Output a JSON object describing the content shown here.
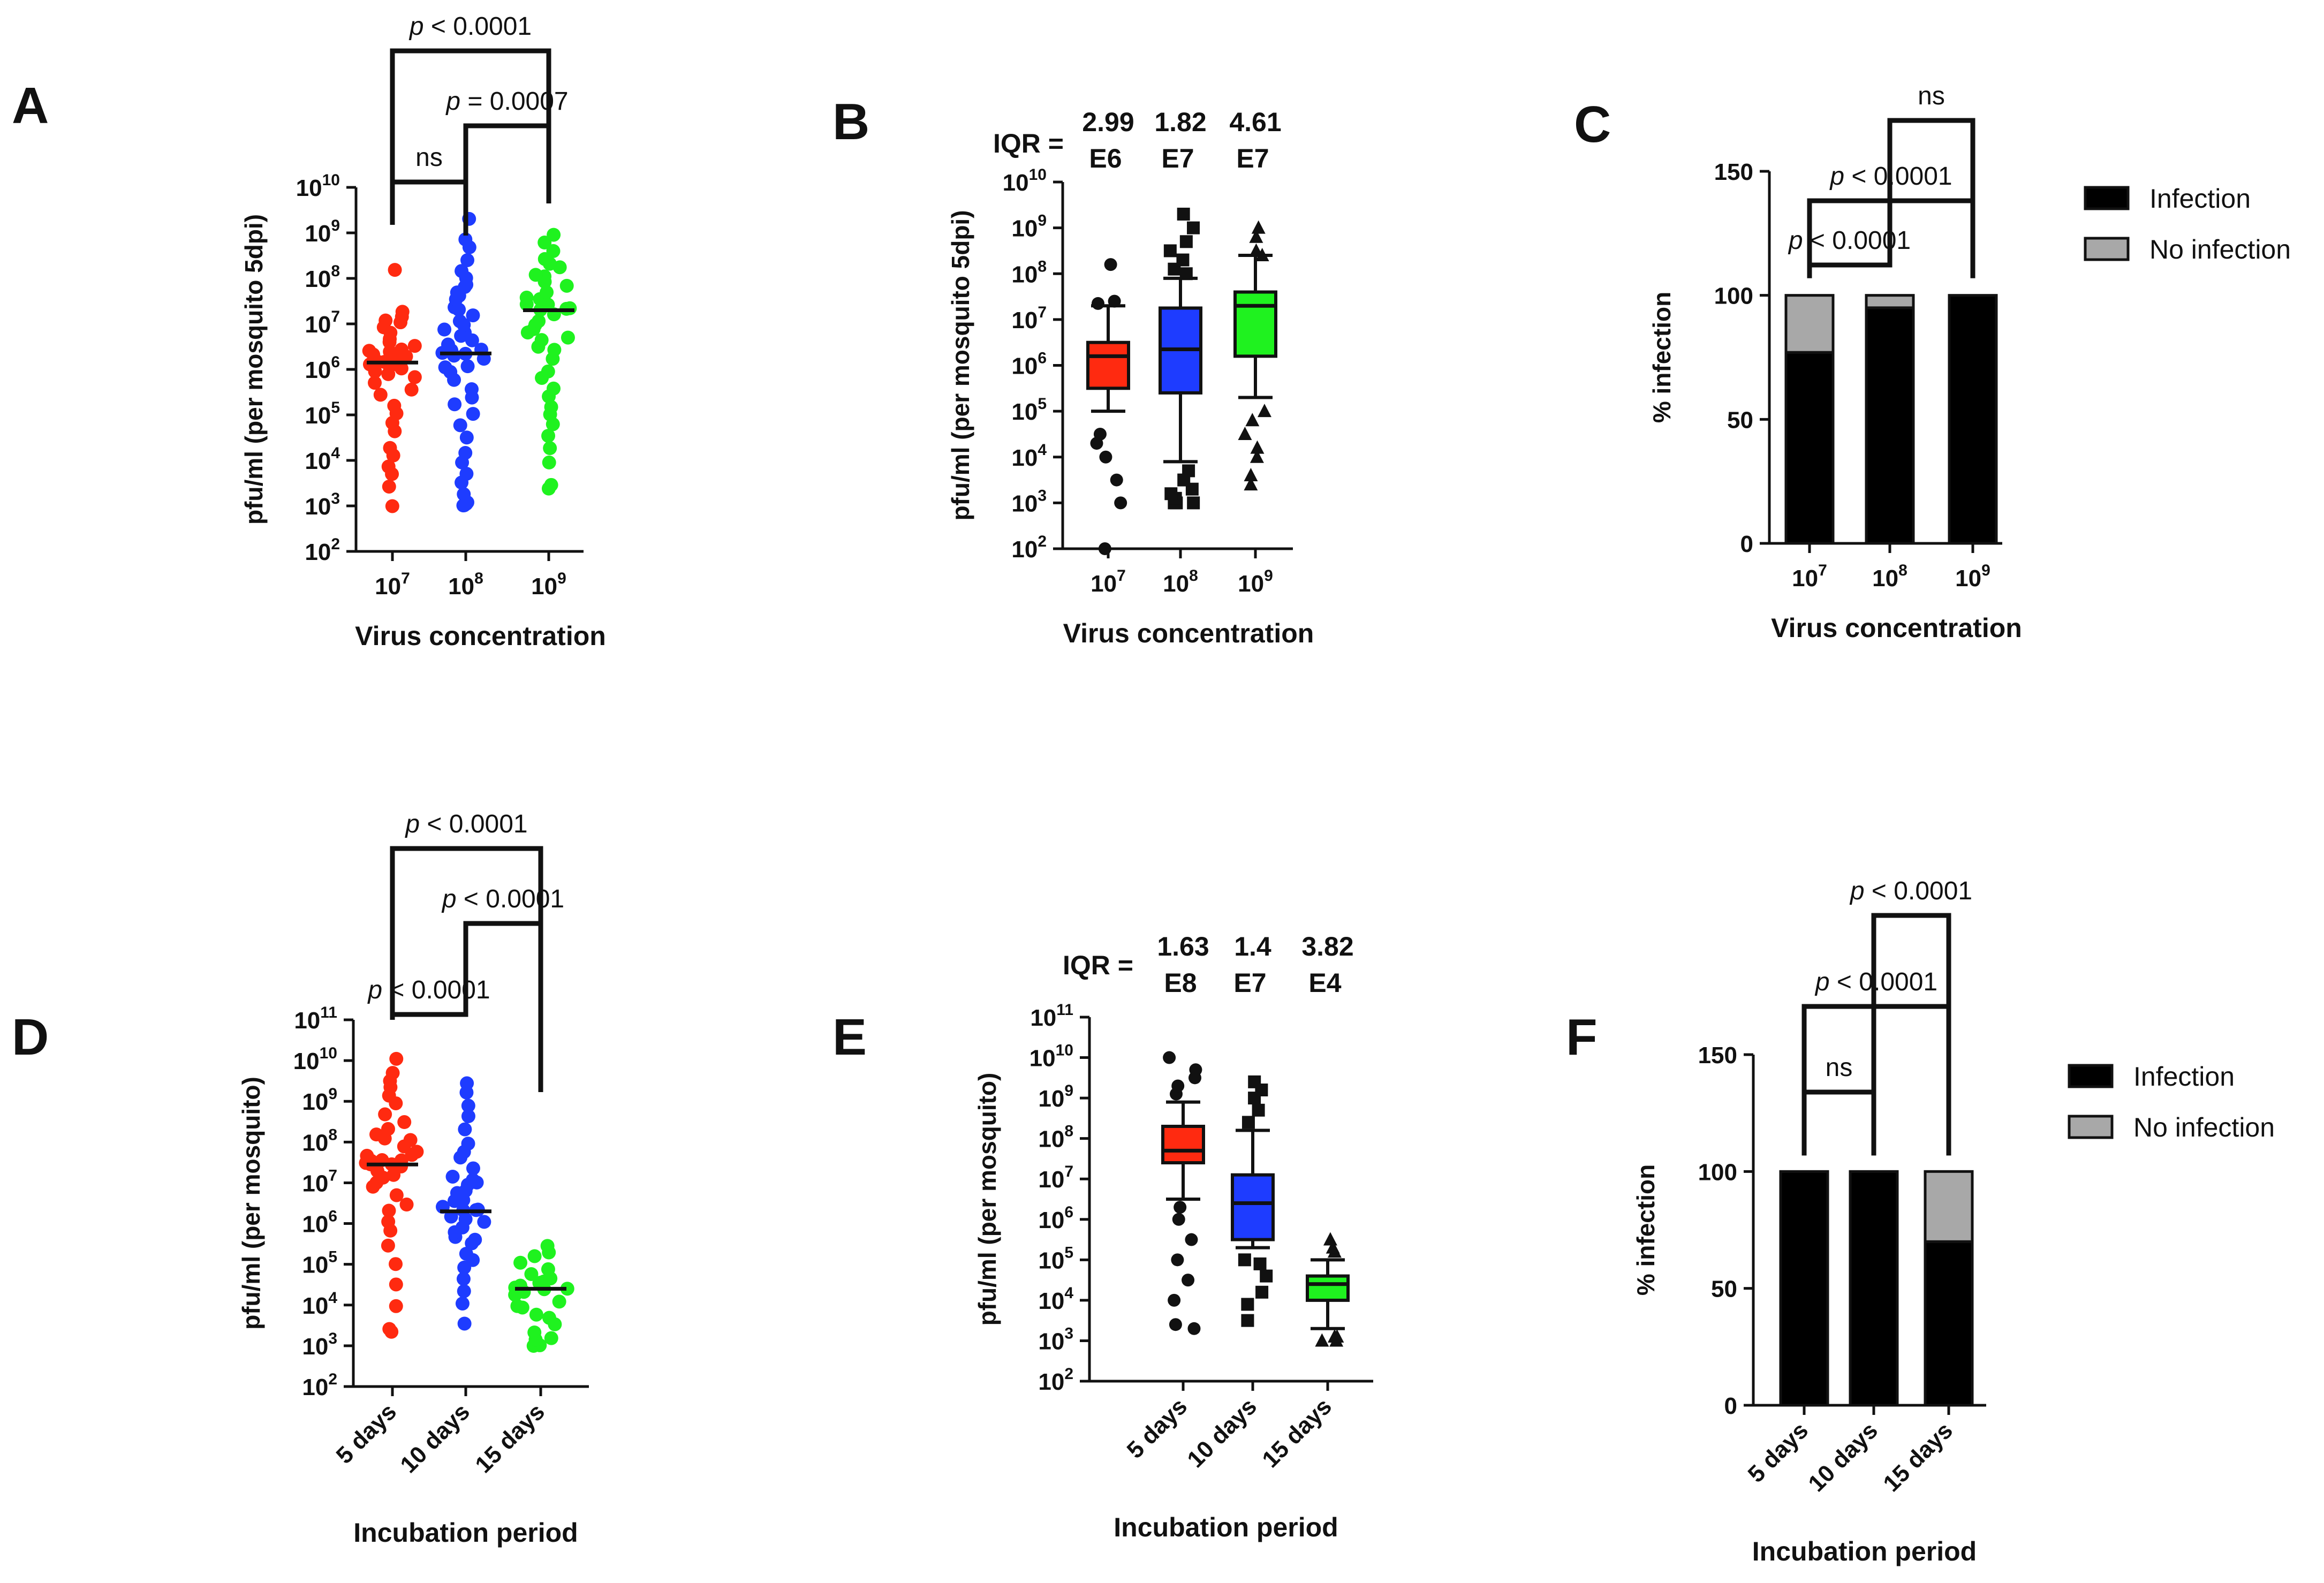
{
  "figure": {
    "panel_letters": [
      "A",
      "B",
      "C",
      "D",
      "E",
      "F"
    ]
  },
  "chart_data": [
    {
      "panel": "A",
      "type": "scatter",
      "xlabel": "Virus concentration",
      "ylabel": "pfu/ml (per mosquito 5dpi)",
      "yscale": "log10",
      "ylim_exp": [
        2,
        10
      ],
      "ytick_base": "10",
      "ytick_exponents": [
        "2",
        "3",
        "4",
        "5",
        "6",
        "7",
        "8",
        "9",
        "10"
      ],
      "categories": [
        {
          "label": "10",
          "sup": "7",
          "color": "#ff2a10",
          "median_exp": 6.15,
          "log_values": [
            3.0,
            3.4,
            3.7,
            3.9,
            4.1,
            4.3,
            4.6,
            4.8,
            5.0,
            5.2,
            5.4,
            5.6,
            5.7,
            5.8,
            5.9,
            6.0,
            6.0,
            6.05,
            6.1,
            6.1,
            6.15,
            6.15,
            6.2,
            6.2,
            6.25,
            6.3,
            6.3,
            6.35,
            6.4,
            6.45,
            6.5,
            6.6,
            6.7,
            6.8,
            6.9,
            7.0,
            7.1,
            7.2,
            7.3,
            8.2
          ]
        },
        {
          "label": "10",
          "sup": "8",
          "color": "#1e3cff",
          "median_exp": 6.35,
          "log_values": [
            3.0,
            3.0,
            3.0,
            3.1,
            3.3,
            3.5,
            3.7,
            4.0,
            4.2,
            4.5,
            4.8,
            5.0,
            5.2,
            5.4,
            5.6,
            5.8,
            5.9,
            6.0,
            6.1,
            6.2,
            6.3,
            6.3,
            6.35,
            6.4,
            6.4,
            6.5,
            6.6,
            6.7,
            6.8,
            6.9,
            7.0,
            7.1,
            7.2,
            7.3,
            7.4,
            7.5,
            7.6,
            7.7,
            7.8,
            7.9,
            8.0,
            8.2,
            8.4,
            8.7,
            8.9,
            9.3
          ]
        },
        {
          "label": "10",
          "sup": "9",
          "color": "#1ff21f",
          "median_exp": 7.3,
          "log_values": [
            3.4,
            3.5,
            4.0,
            4.3,
            4.5,
            4.8,
            5.0,
            5.2,
            5.4,
            5.6,
            5.8,
            6.0,
            6.2,
            6.4,
            6.5,
            6.6,
            6.7,
            6.8,
            6.9,
            7.0,
            7.1,
            7.2,
            7.3,
            7.3,
            7.35,
            7.4,
            7.4,
            7.5,
            7.5,
            7.6,
            7.7,
            7.8,
            7.9,
            8.0,
            8.1,
            8.2,
            8.3,
            8.4,
            8.6,
            8.8,
            9.0
          ]
        }
      ],
      "annotations": [
        {
          "pre": "",
          "it": "p",
          "post": " < 0.0001",
          "from": 0,
          "to": 2,
          "level": 3
        },
        {
          "pre": "",
          "it": "p",
          "post": " = 0.0007",
          "from": 1,
          "to": 2,
          "level": 2
        },
        {
          "pre": "ns",
          "it": "",
          "post": "",
          "from": 0,
          "to": 1,
          "level": 1
        }
      ]
    },
    {
      "panel": "B",
      "type": "box",
      "xlabel": "Virus concentration",
      "ylabel": "pfu/ml (per mosquito 5dpi)",
      "yscale": "log10",
      "ylim_exp": [
        2,
        10
      ],
      "ytick_base": "10",
      "ytick_exponents": [
        "2",
        "3",
        "4",
        "5",
        "6",
        "7",
        "8",
        "9",
        "10"
      ],
      "iqr_label": "IQR =",
      "categories": [
        {
          "label": "10",
          "sup": "7",
          "color": "#ff2a10",
          "marker": "circle",
          "q1": 5.5,
          "median": 6.2,
          "q3": 6.5,
          "whisker_low": 5.0,
          "whisker_high": 7.3,
          "iqr_value": "2.99",
          "iqr_unit": "E6",
          "outliers": [
            2.0,
            3.0,
            3.5,
            4.0,
            4.3,
            4.5,
            7.35,
            7.4,
            8.2
          ]
        },
        {
          "label": "10",
          "sup": "8",
          "color": "#1e3cff",
          "marker": "square",
          "q1": 5.4,
          "median": 6.35,
          "q3": 7.25,
          "whisker_low": 3.9,
          "whisker_high": 7.9,
          "iqr_value": "1.82",
          "iqr_unit": "E7",
          "outliers": [
            3.0,
            3.0,
            3.0,
            3.1,
            3.2,
            3.3,
            3.5,
            3.7,
            8.0,
            8.1,
            8.3,
            8.5,
            8.7,
            9.0,
            9.3
          ]
        },
        {
          "label": "10",
          "sup": "9",
          "color": "#1ff21f",
          "marker": "triangle",
          "q1": 6.2,
          "median": 7.3,
          "q3": 7.6,
          "whisker_low": 5.3,
          "whisker_high": 8.4,
          "iqr_value": "4.61",
          "iqr_unit": "E7",
          "outliers": [
            3.4,
            3.6,
            4.0,
            4.2,
            4.5,
            4.8,
            5.0,
            8.4,
            8.5,
            8.8,
            9.0
          ]
        }
      ]
    },
    {
      "panel": "C",
      "type": "bar",
      "stacked": true,
      "xlabel": "Virus concentration",
      "ylabel": "% infection",
      "ylim": [
        0,
        150
      ],
      "yticks": [
        "0",
        "50",
        "100",
        "150"
      ],
      "categories": [
        {
          "label": "10",
          "sup": "7"
        },
        {
          "label": "10",
          "sup": "8"
        },
        {
          "label": "10",
          "sup": "9"
        }
      ],
      "series": [
        {
          "name": "Infection",
          "color": "#000000",
          "values": [
            77,
            95,
            100
          ]
        },
        {
          "name": "No infection",
          "color": "#a8a8a8",
          "values": [
            23,
            5,
            0
          ]
        }
      ],
      "annotations": [
        {
          "pre": "ns",
          "it": "",
          "post": "",
          "from": 1,
          "to": 2,
          "level": 3
        },
        {
          "pre": "",
          "it": "p",
          "post": " < 0.0001",
          "from": 0,
          "to": 2,
          "level": 2
        },
        {
          "pre": "",
          "it": "p",
          "post": " < 0.0001",
          "from": 0,
          "to": 1,
          "level": 1
        }
      ]
    },
    {
      "panel": "D",
      "type": "scatter",
      "xlabel": "Incubation period",
      "ylabel": "pfu/ml (per mosquito)",
      "yscale": "log10",
      "ylim_exp": [
        2,
        11
      ],
      "ytick_base": "10",
      "ytick_exponents": [
        "2",
        "3",
        "4",
        "5",
        "6",
        "7",
        "8",
        "9",
        "10",
        "11"
      ],
      "categories": [
        {
          "label": "5 days",
          "color": "#ff2a10",
          "median_exp": 7.45,
          "log_values": [
            3.3,
            3.4,
            4.0,
            4.5,
            5.0,
            5.5,
            5.8,
            6.0,
            6.3,
            6.5,
            6.7,
            6.9,
            7.0,
            7.1,
            7.2,
            7.3,
            7.4,
            7.4,
            7.45,
            7.5,
            7.5,
            7.55,
            7.6,
            7.65,
            7.7,
            7.8,
            7.9,
            8.0,
            8.1,
            8.2,
            8.3,
            8.5,
            8.7,
            8.9,
            9.1,
            9.3,
            9.5,
            9.7,
            10.0
          ]
        },
        {
          "label": "10 days",
          "color": "#1e3cff",
          "median_exp": 6.3,
          "log_values": [
            3.5,
            4.0,
            4.3,
            4.6,
            4.9,
            5.1,
            5.3,
            5.5,
            5.6,
            5.7,
            5.8,
            5.9,
            6.0,
            6.1,
            6.2,
            6.3,
            6.3,
            6.35,
            6.4,
            6.5,
            6.6,
            6.7,
            6.8,
            6.9,
            7.0,
            7.1,
            7.2,
            7.4,
            7.6,
            7.8,
            8.0,
            8.3,
            8.6,
            8.9,
            9.2,
            9.4
          ]
        },
        {
          "label": "15 days",
          "color": "#1ff21f",
          "median_exp": 4.4,
          "log_values": [
            3.0,
            3.0,
            3.1,
            3.2,
            3.3,
            3.5,
            3.7,
            3.8,
            3.9,
            4.0,
            4.1,
            4.2,
            4.3,
            4.35,
            4.4,
            4.4,
            4.45,
            4.5,
            4.5,
            4.6,
            4.7,
            4.8,
            4.9,
            5.0,
            5.2,
            5.3,
            5.5
          ]
        }
      ],
      "annotations": [
        {
          "pre": "",
          "it": "p",
          "post": " < 0.0001",
          "from": 0,
          "to": 2,
          "level": 3
        },
        {
          "pre": "",
          "it": "p",
          "post": " < 0.0001",
          "from": 1,
          "to": 2,
          "level": 2
        },
        {
          "pre": "",
          "it": "p",
          "post": " < 0.0001",
          "from": 0,
          "to": 1,
          "level": 1
        }
      ]
    },
    {
      "panel": "E",
      "type": "box",
      "xlabel": "Incubation period",
      "ylabel": "pfu/ml (per mosquito)",
      "yscale": "log10",
      "ylim_exp": [
        2,
        11
      ],
      "ytick_base": "10",
      "ytick_exponents": [
        "2",
        "3",
        "4",
        "5",
        "6",
        "7",
        "8",
        "9",
        "10",
        "11"
      ],
      "iqr_label": "IQR =",
      "categories": [
        {
          "label": "5 days",
          "color": "#ff2a10",
          "marker": "circle",
          "q1": 7.4,
          "median": 7.7,
          "q3": 8.3,
          "whisker_low": 6.5,
          "whisker_high": 8.9,
          "iqr_value": "1.63",
          "iqr_unit": "E8",
          "outliers": [
            3.3,
            3.4,
            4.0,
            4.5,
            5.0,
            5.5,
            6.0,
            6.3,
            9.1,
            9.3,
            9.5,
            9.7,
            10.0
          ]
        },
        {
          "label": "10 days",
          "color": "#1e3cff",
          "marker": "square",
          "q1": 5.5,
          "median": 6.4,
          "q3": 7.1,
          "whisker_low": 5.3,
          "whisker_high": 8.2,
          "iqr_value": "1.4",
          "iqr_unit": "E7",
          "outliers": [
            3.5,
            3.9,
            4.2,
            4.6,
            4.9,
            5.0,
            8.4,
            8.7,
            9.0,
            9.2,
            9.4
          ]
        },
        {
          "label": "15 days",
          "color": "#1ff21f",
          "marker": "triangle",
          "q1": 4.0,
          "median": 4.4,
          "q3": 4.6,
          "whisker_low": 3.3,
          "whisker_high": 5.0,
          "iqr_value": "3.82",
          "iqr_unit": "E4",
          "outliers": [
            3.0,
            3.0,
            3.1,
            3.1,
            5.2,
            5.3,
            5.5
          ]
        }
      ]
    },
    {
      "panel": "F",
      "type": "bar",
      "stacked": true,
      "xlabel": "Incubation period",
      "ylabel": "% infection",
      "ylim": [
        0,
        150
      ],
      "yticks": [
        "0",
        "50",
        "100",
        "150"
      ],
      "categories": [
        {
          "label": "5 days"
        },
        {
          "label": "10 days"
        },
        {
          "label": "15 days"
        }
      ],
      "series": [
        {
          "name": "Infection",
          "color": "#000000",
          "values": [
            100,
            100,
            70
          ]
        },
        {
          "name": "No infection",
          "color": "#a8a8a8",
          "values": [
            0,
            0,
            30
          ]
        }
      ],
      "annotations": [
        {
          "pre": "",
          "it": "p",
          "post": " < 0.0001",
          "from": 1,
          "to": 2,
          "level": 3
        },
        {
          "pre": "",
          "it": "p",
          "post": " < 0.0001",
          "from": 0,
          "to": 2,
          "level": 2
        },
        {
          "pre": "ns",
          "it": "",
          "post": "",
          "from": 0,
          "to": 1,
          "level": 1
        }
      ]
    }
  ]
}
